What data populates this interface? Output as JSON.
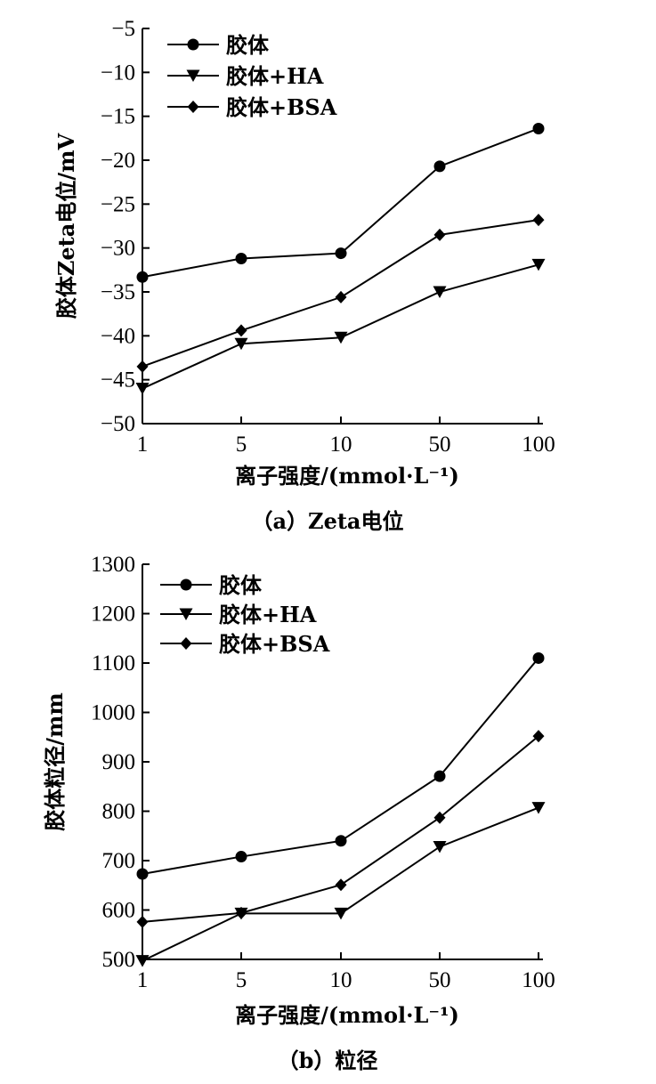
{
  "chart_data": [
    {
      "type": "line",
      "caption": "（a）Zeta电位",
      "categories": [
        "1",
        "5",
        "10",
        "50",
        "100"
      ],
      "xlabel": "离子强度/(mmol·L⁻¹)",
      "ylabel": "胶体Zeta电位/mV",
      "ylim": [
        -50,
        -5
      ],
      "yticks": [
        "−5",
        "−10",
        "−15",
        "−20",
        "−25",
        "−30",
        "−35",
        "−40",
        "−45",
        "−50"
      ],
      "ytick_values": [
        -5,
        -10,
        -15,
        -20,
        -25,
        -30,
        -35,
        -40,
        -45,
        -50
      ],
      "legend_position": "top-left",
      "series": [
        {
          "name": "胶体",
          "marker": "circle",
          "values": [
            -33.3,
            -31.2,
            -30.6,
            -20.7,
            -16.4
          ]
        },
        {
          "name": "胶体+HA",
          "marker": "triangle-down",
          "values": [
            -46.0,
            -40.9,
            -40.2,
            -35.0,
            -31.9
          ]
        },
        {
          "name": "胶体+BSA",
          "marker": "diamond",
          "values": [
            -43.5,
            -39.4,
            -35.6,
            -28.5,
            -26.8
          ]
        }
      ]
    },
    {
      "type": "line",
      "caption": "（b）粒径",
      "categories": [
        "1",
        "5",
        "10",
        "50",
        "100"
      ],
      "xlabel": "离子强度/(mmol·L⁻¹)",
      "ylabel": "胶体粒径/mm",
      "ylim": [
        500,
        1300
      ],
      "yticks": [
        "1300",
        "1200",
        "1100",
        "1000",
        "900",
        "800",
        "700",
        "600",
        "500"
      ],
      "ytick_values": [
        1300,
        1200,
        1100,
        1000,
        900,
        800,
        700,
        600,
        500
      ],
      "legend_position": "top-left",
      "series": [
        {
          "name": "胶体",
          "marker": "circle",
          "values": [
            673,
            708,
            740,
            871,
            1110
          ]
        },
        {
          "name": "胶体+HA",
          "marker": "triangle-down",
          "values": [
            497,
            593,
            593,
            728,
            807
          ]
        },
        {
          "name": "胶体+BSA",
          "marker": "diamond",
          "values": [
            576,
            594,
            651,
            787,
            952
          ]
        }
      ]
    }
  ]
}
